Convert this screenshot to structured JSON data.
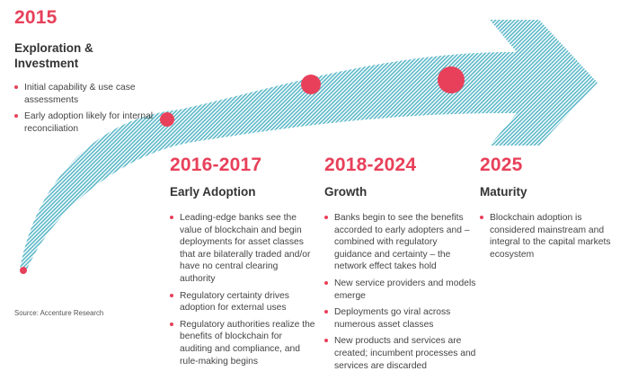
{
  "colors": {
    "accent": "#e8405a",
    "arrow_stripe": "#5bb8c8",
    "text": "#333333"
  },
  "phases": [
    {
      "year": "2015",
      "title": "Exploration & Investment",
      "bullets": [
        "Initial capability & use case assessments",
        "Early adoption likely for internal reconciliation"
      ]
    },
    {
      "year": "2016-2017",
      "title": "Early Adoption",
      "bullets": [
        "Leading-edge banks see the value of blockchain and begin deployments for asset classes that are bilaterally traded and/or have no central clearing authority",
        "Regulatory certainty drives adoption for external uses",
        "Regulatory authorities realize the benefits of blockchain for auditing and compliance, and rule-making begins"
      ]
    },
    {
      "year": "2018-2024",
      "title": "Growth",
      "bullets": [
        "Banks begin to see the benefits accorded to early adopters and – combined with regulatory guidance and certainty – the network effect takes hold",
        "New service providers and models emerge",
        "Deployments go viral across numerous asset classes",
        "New products and services are created; incumbent processes and services are discarded"
      ]
    },
    {
      "year": "2025",
      "title": "Maturity",
      "bullets": [
        "Blockchain adoption is considered mainstream and integral to the capital markets ecosystem"
      ]
    }
  ],
  "source": "Source: Accenture Research"
}
